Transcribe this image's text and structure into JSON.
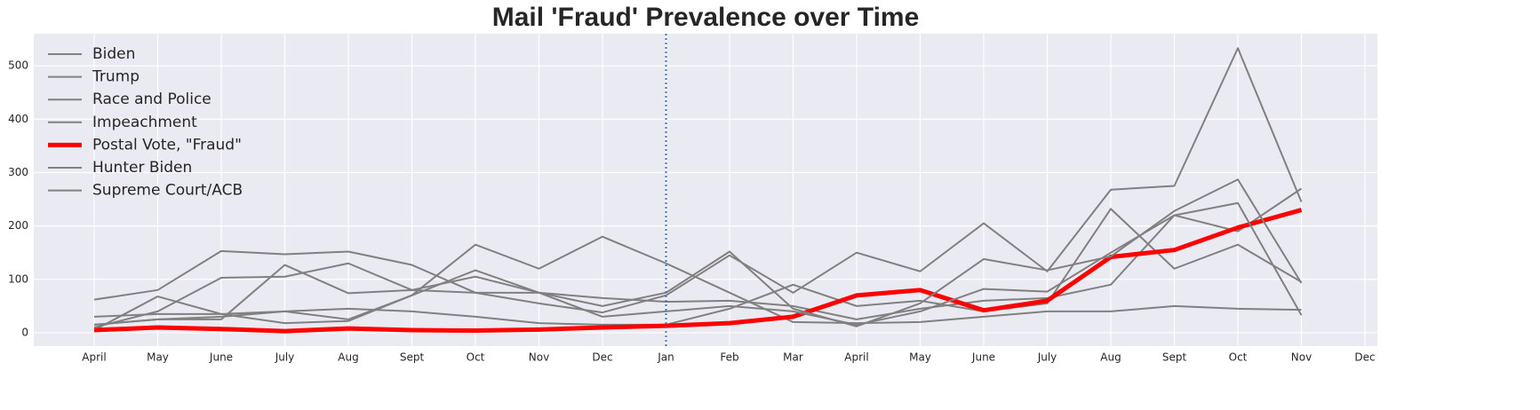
{
  "chart_data": {
    "type": "line",
    "title": "Mail 'Fraud' Prevalence over Time",
    "categories": [
      "April",
      "May",
      "June",
      "July",
      "Aug",
      "Sept",
      "Oct",
      "Nov",
      "Dec",
      "Jan",
      "Feb",
      "Mar",
      "April",
      "May",
      "June",
      "July",
      "Aug",
      "Sept",
      "Oct",
      "Nov",
      "Dec"
    ],
    "series": [
      {
        "name": "Biden",
        "color": "#808080",
        "width": 2,
        "values": [
          62,
          80,
          153,
          147,
          152,
          127,
          75,
          75,
          65,
          58,
          60,
          50,
          25,
          45,
          60,
          65,
          90,
          220,
          190,
          270,
          null
        ]
      },
      {
        "name": "Trump",
        "color": "#808080",
        "width": 2,
        "values": [
          30,
          35,
          35,
          18,
          22,
          70,
          165,
          120,
          180,
          130,
          75,
          20,
          18,
          20,
          30,
          40,
          40,
          50,
          45,
          43,
          null
        ]
      },
      {
        "name": "Race and Police",
        "color": "#808080",
        "width": 2,
        "values": [
          15,
          25,
          25,
          127,
          74,
          80,
          75,
          55,
          38,
          70,
          145,
          75,
          150,
          115,
          205,
          115,
          268,
          275,
          533,
          245,
          null
        ]
      },
      {
        "name": "Impeachment",
        "color": "#808080",
        "width": 2,
        "values": [
          5,
          68,
          35,
          40,
          45,
          40,
          30,
          18,
          15,
          15,
          45,
          90,
          50,
          60,
          40,
          55,
          232,
          120,
          165,
          95,
          null
        ]
      },
      {
        "name": "Postal Vote, \"Fraud\"",
        "color": "#ff0000",
        "width": 5,
        "values": [
          5,
          10,
          7,
          3,
          8,
          5,
          4,
          6,
          10,
          13,
          18,
          30,
          70,
          80,
          42,
          60,
          142,
          155,
          197,
          230,
          null
        ]
      },
      {
        "name": "Hunter Biden",
        "color": "#808080",
        "width": 2,
        "values": [
          10,
          40,
          103,
          105,
          130,
          80,
          105,
          75,
          50,
          75,
          152,
          45,
          12,
          55,
          138,
          117,
          143,
          228,
          287,
          93,
          null
        ]
      },
      {
        "name": "Supreme Court/ACB",
        "color": "#808080",
        "width": 2,
        "values": [
          15,
          25,
          30,
          40,
          25,
          70,
          117,
          75,
          30,
          40,
          50,
          40,
          15,
          40,
          82,
          77,
          150,
          220,
          243,
          33,
          null
        ]
      }
    ],
    "ylim": [
      -25,
      560
    ],
    "yticks": [
      0,
      100,
      200,
      300,
      400,
      500
    ],
    "grid": true,
    "legend": "upper left",
    "reference_line": {
      "x": "Jan",
      "color": "#4c72b0",
      "style": "dotted"
    }
  }
}
